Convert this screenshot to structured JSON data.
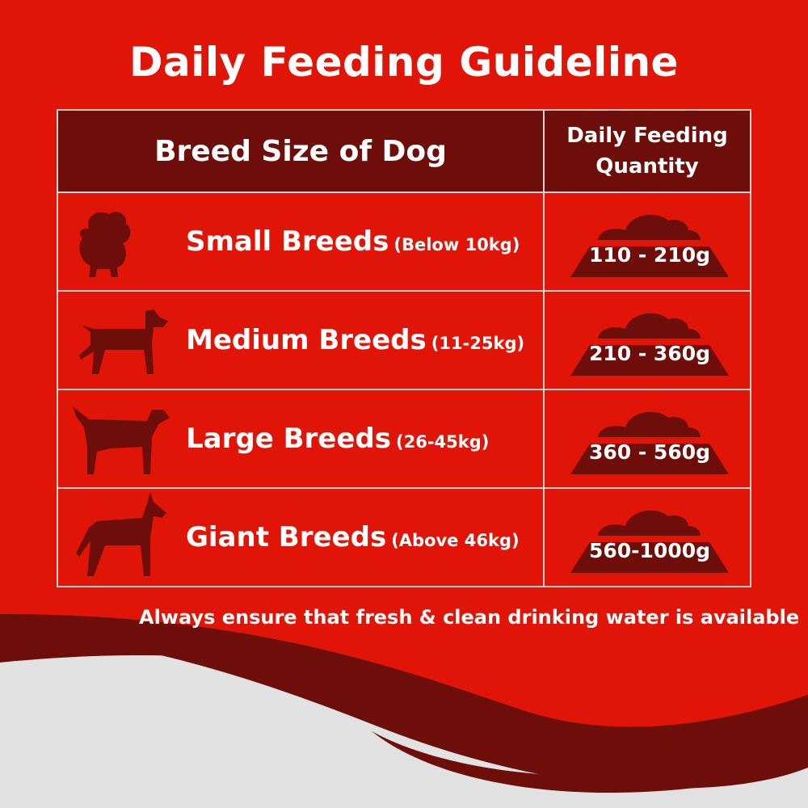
{
  "title": "Daily Feeding Guideline",
  "colors": {
    "background_red": "#e01507",
    "dark_red": "#6e0e0a",
    "grey": "#e2e2e2"
  },
  "table": {
    "headers": [
      "Breed Size of Dog",
      "Daily Feeding Quantity"
    ],
    "header2_lines": [
      "Daily Feeding",
      "Quantity"
    ],
    "rows": [
      {
        "breed": "Small Breeds",
        "range": "(Below 10kg)",
        "quantity": "110 - 210g",
        "icon": "small-dog-icon"
      },
      {
        "breed": "Medium Breeds",
        "range": "(11-25kg)",
        "quantity": "210 - 360g",
        "icon": "medium-dog-icon"
      },
      {
        "breed": "Large Breeds",
        "range": "(26-45kg)",
        "quantity": "360 - 560g",
        "icon": "large-dog-icon"
      },
      {
        "breed": "Giant Breeds",
        "range": "(Above 46kg)",
        "quantity": "560-1000g",
        "icon": "giant-dog-icon"
      }
    ]
  },
  "note": "Always ensure that fresh & clean drinking water is available"
}
